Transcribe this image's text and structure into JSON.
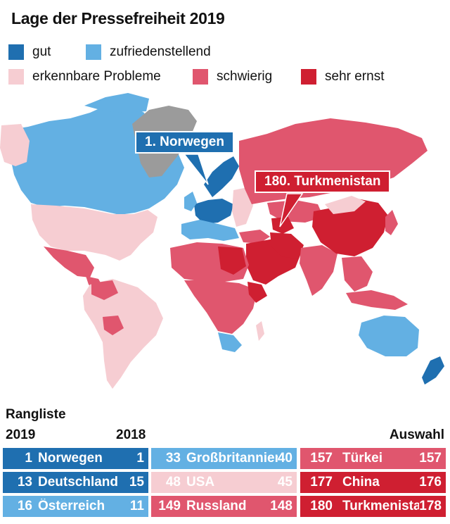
{
  "title": "Lage der Pressefreiheit 2019",
  "colors": {
    "gut": "#1f6fb0",
    "zufriedenstellend": "#63b0e3",
    "erkennbare_probleme": "#f6cdd2",
    "schwierig": "#e0566e",
    "sehr_ernst": "#cf1f31",
    "keine_daten": "#9b9b9b",
    "sea": "#ffffff"
  },
  "legend": [
    {
      "label": "gut",
      "color": "#1f6fb0"
    },
    {
      "label": "zufriedenstellend",
      "color": "#63b0e3"
    },
    {
      "label": "erkennbare Probleme",
      "color": "#f6cdd2"
    },
    {
      "label": "schwierig",
      "color": "#e0566e"
    },
    {
      "label": "sehr ernst",
      "color": "#cf1f31"
    }
  ],
  "callouts": {
    "norway": "1. Norwegen",
    "turkmenistan": "180. Turkmenistan"
  },
  "ranking": {
    "heading": "Rangliste",
    "year_now": "2019",
    "year_prev": "2018",
    "selection": "Auswahl",
    "columns": [
      [
        {
          "rank": "1",
          "country": "Norwegen",
          "prev": "1",
          "color": "#1f6fb0"
        },
        {
          "rank": "13",
          "country": "Deutschland",
          "prev": "15",
          "color": "#1f6fb0"
        },
        {
          "rank": "16",
          "country": "Österreich",
          "prev": "11",
          "color": "#63b0e3"
        }
      ],
      [
        {
          "rank": "33",
          "country": "Großbritannien",
          "prev": "40",
          "color": "#63b0e3"
        },
        {
          "rank": "48",
          "country": "USA",
          "prev": "45",
          "color": "#f6cdd2"
        },
        {
          "rank": "149",
          "country": "Russland",
          "prev": "148",
          "color": "#e0566e"
        }
      ],
      [
        {
          "rank": "157",
          "country": "Türkei",
          "prev": "157",
          "color": "#e0566e"
        },
        {
          "rank": "177",
          "country": "China",
          "prev": "176",
          "color": "#cf1f31"
        },
        {
          "rank": "180",
          "country": "Turkmenistan",
          "prev": "178",
          "color": "#cf1f31"
        }
      ]
    ]
  }
}
